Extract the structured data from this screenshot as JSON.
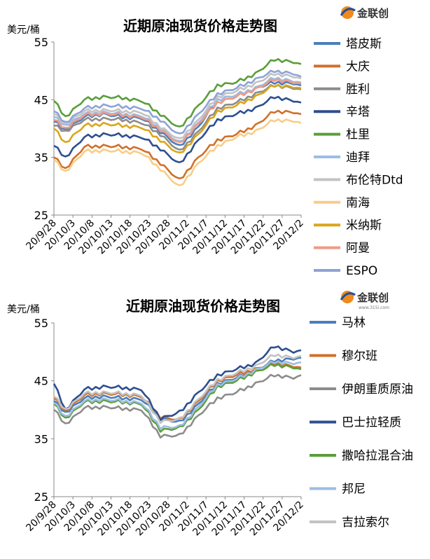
{
  "logo": {
    "text": "金联创",
    "sub": "www.315i.com"
  },
  "chart_data": [
    {
      "type": "line",
      "title": "近期原油现货价格走势图",
      "ylabel": "美元/桶",
      "ylim": [
        25,
        55
      ],
      "yticks": [
        "25",
        "35",
        "45",
        "55"
      ],
      "xtick_labels": [
        "20/9/28",
        "20/10/3",
        "20/10/8",
        "20/10/13",
        "20/10/18",
        "20/10/23",
        "20/10/28",
        "20/11/2",
        "20/11/7",
        "20/11/12",
        "20/11/17",
        "20/11/22",
        "20/11/27",
        "20/12/2"
      ],
      "grid": false,
      "legend": "right",
      "anchor_index": [
        0,
        3,
        8,
        13,
        18,
        23,
        28,
        33,
        38,
        43,
        48,
        53,
        58,
        63,
        65
      ],
      "series": [
        {
          "name": "塔皮斯",
          "color": "#4a7ebb",
          "anchors": [
            41.2,
            39.8,
            42.0,
            42.5,
            42.0,
            41.8,
            39.5,
            36.8,
            40.3,
            45.0,
            45.8,
            47.0,
            48.0,
            47.8,
            47.5
          ]
        },
        {
          "name": "大庆",
          "color": "#d0702a",
          "anchors": [
            35.0,
            33.0,
            36.8,
            37.0,
            36.8,
            36.5,
            34.0,
            31.0,
            35.0,
            38.0,
            39.0,
            40.5,
            43.0,
            42.8,
            42.5
          ]
        },
        {
          "name": "胜利",
          "color": "#8c8c8c",
          "anchors": [
            40.5,
            39.5,
            41.5,
            41.7,
            41.5,
            41.0,
            39.0,
            36.0,
            39.5,
            43.5,
            44.5,
            46.0,
            47.5,
            47.0,
            46.8
          ]
        },
        {
          "name": "辛塔",
          "color": "#2e4f8f",
          "anchors": [
            37.0,
            35.0,
            38.5,
            39.0,
            38.8,
            38.5,
            36.5,
            33.8,
            38.0,
            41.5,
            42.5,
            43.5,
            45.5,
            44.8,
            44.5
          ]
        },
        {
          "name": "杜里",
          "color": "#5a9e3a",
          "anchors": [
            44.8,
            42.0,
            45.0,
            45.5,
            45.3,
            44.8,
            42.5,
            40.0,
            44.0,
            47.5,
            48.0,
            49.5,
            52.0,
            51.5,
            51.2
          ]
        },
        {
          "name": "迪拜",
          "color": "#9dbde3",
          "anchors": [
            42.0,
            40.5,
            42.5,
            42.8,
            42.5,
            42.2,
            40.0,
            37.5,
            41.0,
            45.0,
            45.8,
            47.0,
            48.8,
            48.2,
            48.0
          ]
        },
        {
          "name": "布伦特Dtd",
          "color": "#c3c3c3",
          "anchors": [
            42.5,
            40.8,
            43.0,
            43.2,
            43.0,
            42.8,
            40.3,
            38.0,
            41.5,
            45.5,
            46.5,
            47.8,
            49.5,
            49.0,
            48.7
          ]
        },
        {
          "name": "南海",
          "color": "#f8cd88",
          "anchors": [
            34.5,
            32.5,
            36.0,
            36.2,
            36.0,
            35.8,
            33.0,
            29.8,
            34.0,
            37.0,
            38.5,
            39.5,
            41.5,
            41.3,
            41.0
          ]
        },
        {
          "name": "米纳斯",
          "color": "#d9a61c",
          "anchors": [
            40.0,
            37.5,
            40.5,
            40.8,
            40.5,
            40.2,
            38.0,
            35.5,
            39.0,
            43.0,
            44.0,
            45.5,
            47.5,
            47.2,
            47.0
          ]
        },
        {
          "name": "阿曼",
          "color": "#ef9a86",
          "anchors": [
            41.5,
            40.0,
            42.3,
            42.6,
            42.3,
            42.0,
            39.8,
            37.3,
            40.8,
            44.5,
            45.5,
            46.8,
            48.5,
            48.0,
            47.8
          ]
        },
        {
          "name": "ESPO",
          "color": "#8ea3d6",
          "anchors": [
            43.0,
            41.0,
            43.5,
            44.0,
            43.8,
            43.5,
            41.5,
            38.8,
            42.5,
            46.0,
            47.0,
            48.5,
            50.0,
            49.5,
            49.0
          ]
        }
      ]
    },
    {
      "type": "line",
      "title": "近期原油现货价格走势图",
      "ylabel": "美元/桶",
      "ylim": [
        25,
        55
      ],
      "yticks": [
        "25",
        "35",
        "45",
        "55"
      ],
      "xtick_labels": [
        "20/9/28",
        "20/10/3",
        "20/10/8",
        "20/10/13",
        "20/10/18",
        "20/10/23",
        "20/10/28",
        "20/11/2",
        "20/11/7",
        "20/11/12",
        "20/11/17",
        "20/11/22",
        "20/11/27",
        "20/12/2"
      ],
      "grid": false,
      "legend": "right",
      "anchor_index": [
        0,
        3,
        8,
        13,
        18,
        23,
        28,
        33,
        38,
        43,
        48,
        53,
        58,
        63,
        65
      ],
      "series": [
        {
          "name": "马林",
          "color": "#4a7ebb",
          "anchors": [
            41.5,
            39.5,
            42.0,
            42.3,
            42.0,
            41.8,
            38.5,
            37.8,
            41.0,
            44.5,
            45.5,
            46.8,
            48.5,
            48.8,
            49.0
          ]
        },
        {
          "name": "穆尔班",
          "color": "#d0702a",
          "anchors": [
            42.0,
            39.8,
            42.5,
            42.8,
            42.6,
            42.3,
            38.8,
            38.2,
            41.5,
            45.0,
            46.0,
            47.0,
            48.0,
            47.5,
            47.3
          ]
        },
        {
          "name": "伊朗重质原油",
          "color": "#8c8c8c",
          "anchors": [
            40.0,
            37.5,
            40.3,
            40.5,
            40.2,
            40.0,
            35.5,
            35.5,
            39.0,
            42.0,
            43.0,
            44.5,
            46.0,
            45.5,
            46.0
          ]
        },
        {
          "name": "巴士拉轻质",
          "color": "#2e4f8f",
          "anchors": [
            44.5,
            40.0,
            43.5,
            44.0,
            43.8,
            43.5,
            38.5,
            39.5,
            43.0,
            46.0,
            47.0,
            48.0,
            51.0,
            50.0,
            50.3
          ]
        },
        {
          "name": "撒哈拉混合油",
          "color": "#5a9e3a",
          "anchors": [
            41.0,
            38.5,
            41.3,
            41.5,
            41.3,
            41.0,
            36.5,
            36.8,
            40.0,
            44.0,
            45.0,
            46.5,
            47.8,
            47.3,
            47.0
          ]
        },
        {
          "name": "邦尼",
          "color": "#9dbde3",
          "anchors": [
            41.2,
            38.8,
            41.5,
            41.8,
            41.5,
            41.2,
            37.0,
            37.0,
            40.5,
            44.3,
            45.3,
            46.8,
            48.3,
            48.0,
            48.2
          ]
        },
        {
          "name": "吉拉索尔",
          "color": "#c3c3c3",
          "anchors": [
            42.3,
            40.0,
            42.8,
            43.0,
            42.8,
            42.5,
            38.0,
            38.3,
            41.8,
            45.2,
            46.3,
            47.5,
            49.5,
            49.0,
            49.3
          ]
        }
      ]
    }
  ]
}
